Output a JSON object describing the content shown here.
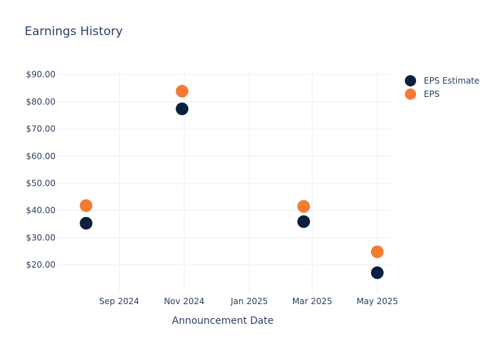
{
  "chart_data": {
    "type": "scatter",
    "title": "Earnings History",
    "xlabel": "Announcement Date",
    "ylabel": "",
    "x_ticks": [
      {
        "date": "2024-09-01",
        "label": "Sep 2024"
      },
      {
        "date": "2024-11-01",
        "label": "Nov 2024"
      },
      {
        "date": "2025-01-01",
        "label": "Jan 2025"
      },
      {
        "date": "2025-03-01",
        "label": "Mar 2025"
      },
      {
        "date": "2025-05-01",
        "label": "May 2025"
      }
    ],
    "y_ticks": [
      {
        "value": 20,
        "label": "$20.00"
      },
      {
        "value": 30,
        "label": "$30.00"
      },
      {
        "value": 40,
        "label": "$40.00"
      },
      {
        "value": 50,
        "label": "$50.00"
      },
      {
        "value": 60,
        "label": "$60.00"
      },
      {
        "value": 70,
        "label": "$70.00"
      },
      {
        "value": 80,
        "label": "$80.00"
      },
      {
        "value": 90,
        "label": "$90.00"
      }
    ],
    "xlim": [
      "2024-07-04",
      "2025-05-13"
    ],
    "ylim": [
      10.2,
      91.6
    ],
    "grid": true,
    "legend_position": "top-right",
    "series": [
      {
        "name": "EPS Estimate",
        "color": "#0b1f3f",
        "points": [
          {
            "x": "2024-08-01",
            "y": 35.3
          },
          {
            "x": "2024-10-30",
            "y": 77.4
          },
          {
            "x": "2025-02-21",
            "y": 35.9
          },
          {
            "x": "2025-05-01",
            "y": 17.1
          }
        ]
      },
      {
        "name": "EPS",
        "color": "#f47b33",
        "points": [
          {
            "x": "2024-08-01",
            "y": 41.8
          },
          {
            "x": "2024-10-30",
            "y": 83.9
          },
          {
            "x": "2025-02-21",
            "y": 41.5
          },
          {
            "x": "2025-05-01",
            "y": 24.8
          }
        ]
      }
    ]
  }
}
